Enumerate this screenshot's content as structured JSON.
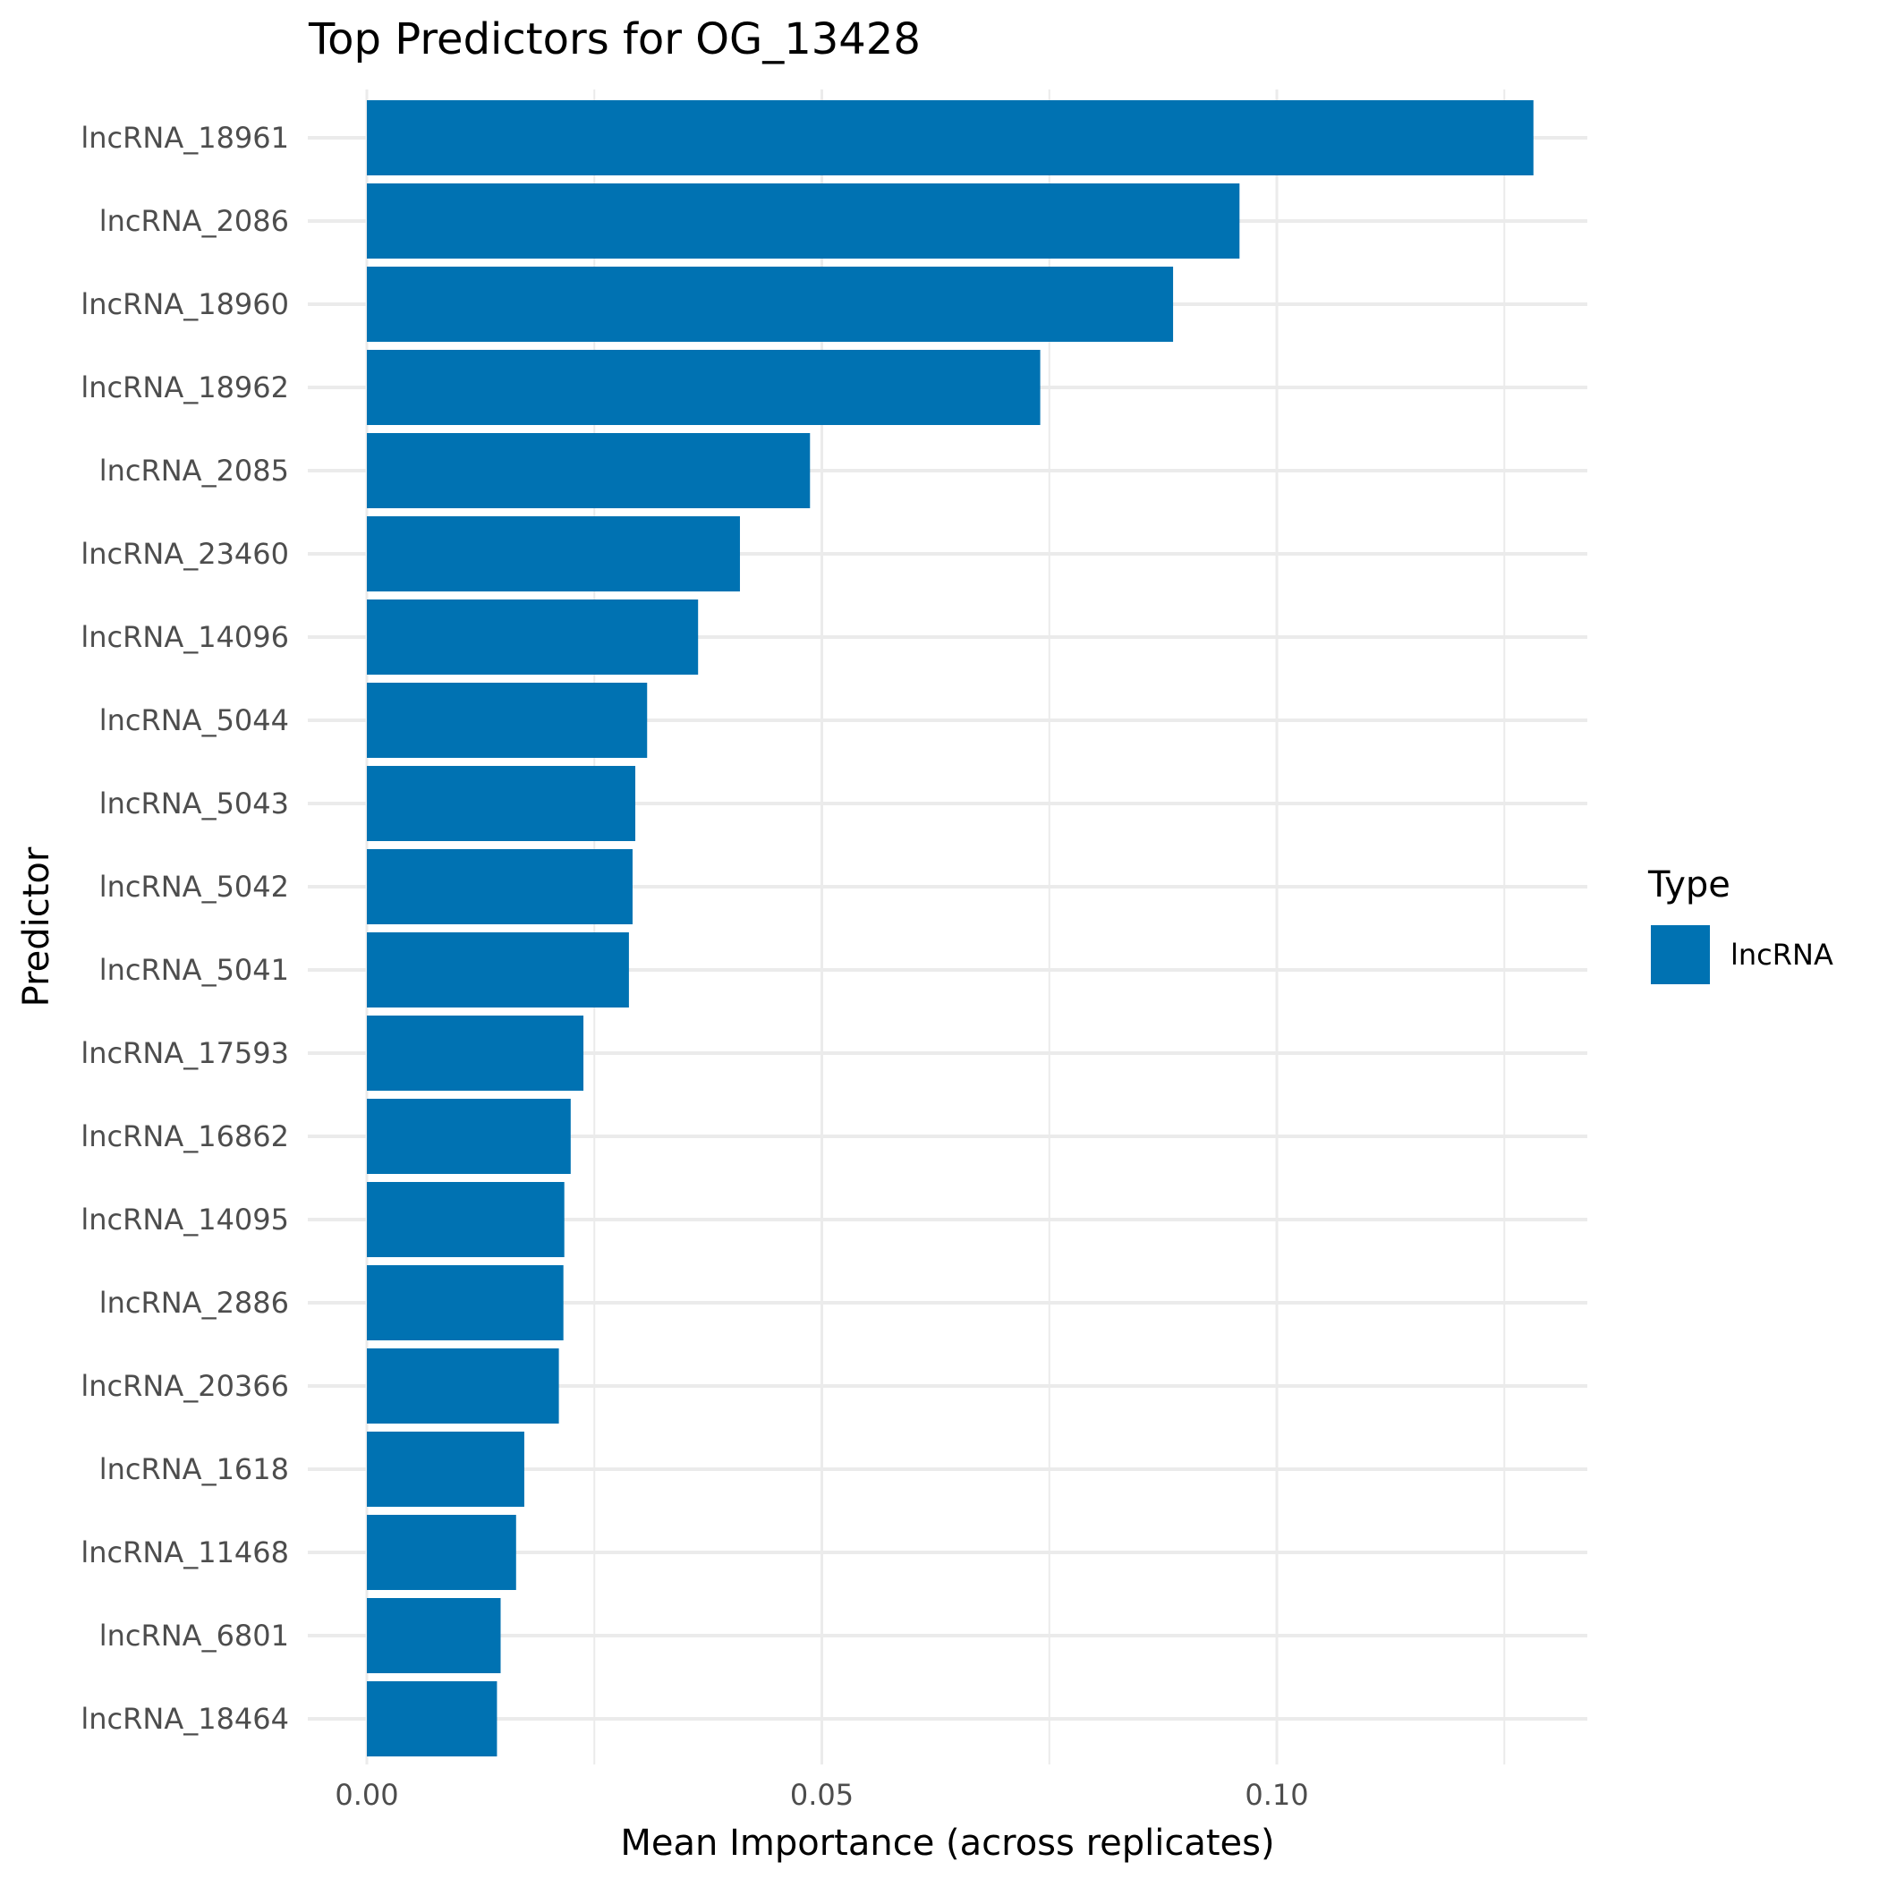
{
  "chart_data": {
    "type": "bar",
    "orientation": "horizontal",
    "title": "Top Predictors for OG_13428",
    "xlabel": "Mean Importance (across replicates)",
    "ylabel": "Predictor",
    "xlim": [
      -0.0085,
      0.1345
    ],
    "x_ticks": [
      {
        "value": 0.0,
        "label": "0.00"
      },
      {
        "value": 0.05,
        "label": "0.05"
      },
      {
        "value": 0.1,
        "label": "0.10"
      }
    ],
    "x_minor_ticks": [
      0.025,
      0.075,
      0.125
    ],
    "grid": true,
    "legend": {
      "title": "Type",
      "position": "right",
      "entries": [
        {
          "label": "lncRNA",
          "color": "#0072B2"
        }
      ]
    },
    "series": [
      {
        "name": "lncRNA",
        "color": "#0072B2",
        "categories": [
          "lncRNA_18961",
          "lncRNA_2086",
          "lncRNA_18960",
          "lncRNA_18962",
          "lncRNA_2085",
          "lncRNA_23460",
          "lncRNA_14096",
          "lncRNA_5044",
          "lncRNA_5043",
          "lncRNA_5042",
          "lncRNA_5041",
          "lncRNA_17593",
          "lncRNA_16862",
          "lncRNA_14095",
          "lncRNA_2886",
          "lncRNA_20366",
          "lncRNA_1618",
          "lncRNA_11468",
          "lncRNA_6801",
          "lncRNA_18464"
        ],
        "values": [
          0.1282,
          0.0959,
          0.0886,
          0.074,
          0.0487,
          0.041,
          0.0364,
          0.0308,
          0.0295,
          0.0292,
          0.0288,
          0.0238,
          0.0224,
          0.0217,
          0.0216,
          0.0211,
          0.0173,
          0.0164,
          0.0147,
          0.0143
        ]
      }
    ]
  }
}
